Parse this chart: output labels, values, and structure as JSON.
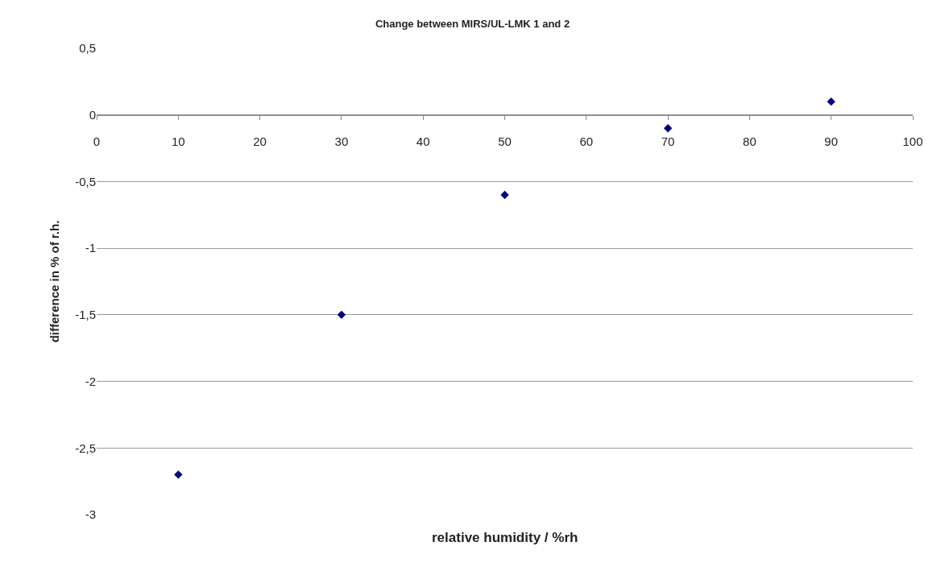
{
  "chart_data": {
    "type": "scatter",
    "title": "Change between MIRS/UL-LMK 1 and 2",
    "xlabel": "relative humidity / %rh",
    "ylabel": "difference in % of r.h.",
    "x": [
      10,
      30,
      50,
      70,
      90
    ],
    "series": [
      {
        "color": "#000080",
        "values": [
          -2.7,
          -1.5,
          -0.6,
          -0.1,
          0.1
        ]
      }
    ],
    "marker": "diamond",
    "xlim": [
      0,
      100
    ],
    "xticks": [
      0,
      10,
      20,
      30,
      40,
      50,
      60,
      70,
      80,
      90,
      100
    ],
    "ylim": [
      -3,
      0.5
    ],
    "yticks": [
      {
        "value": -3,
        "label": "-3"
      },
      {
        "value": -2.5,
        "label": "-2,5"
      },
      {
        "value": -2,
        "label": "-2"
      },
      {
        "value": -1.5,
        "label": "-1,5"
      },
      {
        "value": -1,
        "label": "-1"
      },
      {
        "value": -0.5,
        "label": "-0,5"
      },
      {
        "value": 0,
        "label": "0"
      },
      {
        "value": 0.5,
        "label": "0,5"
      }
    ],
    "grid": "y"
  }
}
